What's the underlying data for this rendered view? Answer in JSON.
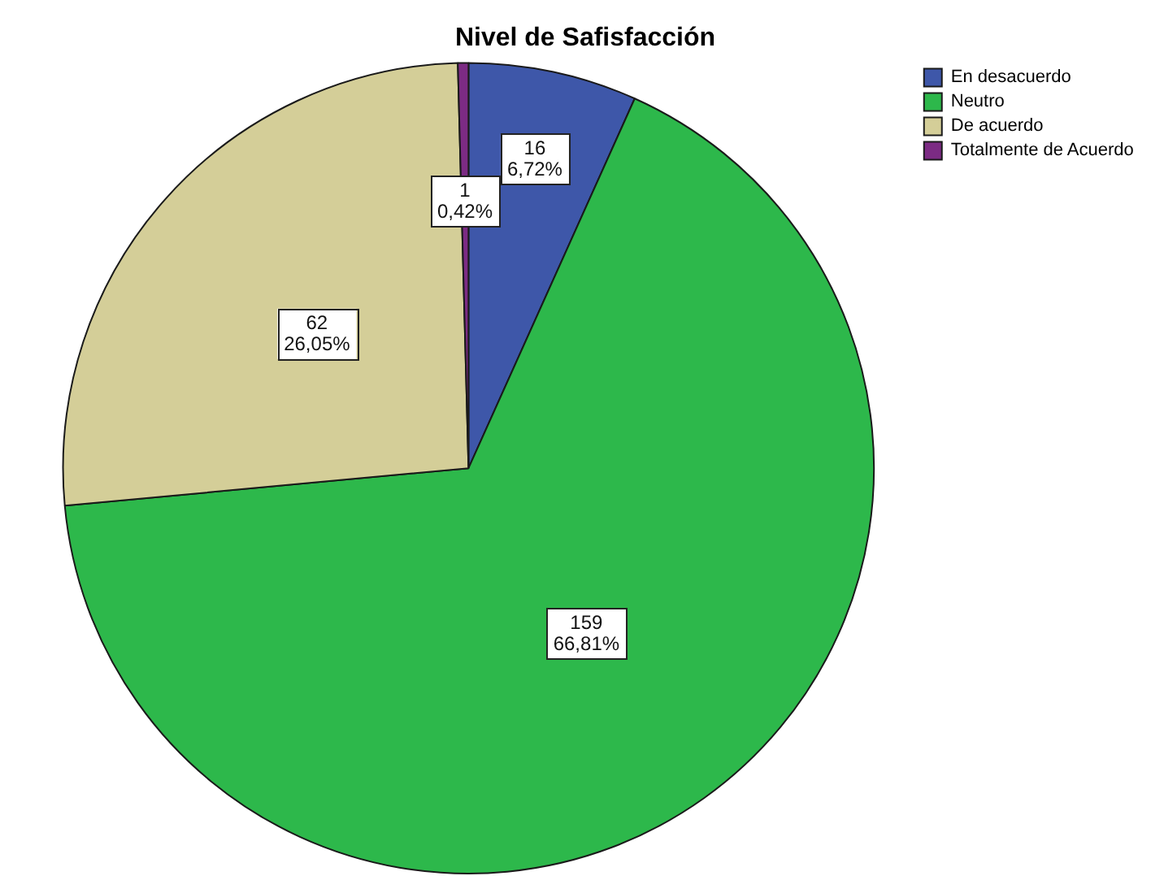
{
  "chart_data": {
    "type": "pie",
    "title": "Nivel de Safisfacción",
    "categories": [
      "En desacuerdo",
      "Neutro",
      "De acuerdo",
      "Totalmente de Acuerdo"
    ],
    "values": [
      16,
      159,
      62,
      1
    ],
    "colors": [
      "#3e57a9",
      "#2db84b",
      "#d4ce98",
      "#7c2b84"
    ],
    "value_labels": [
      "16\n6,72%",
      "159\n66,81%",
      "62\n26,05%",
      "1\n0,42%"
    ],
    "legend": "top right"
  }
}
